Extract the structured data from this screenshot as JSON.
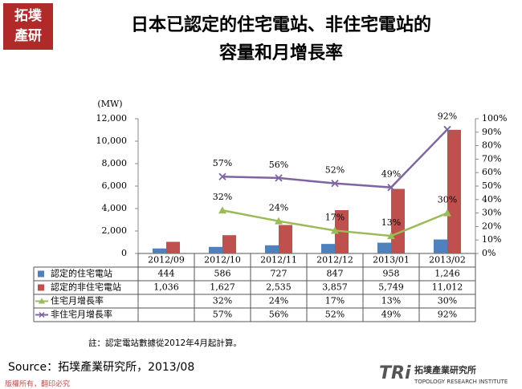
{
  "chart_data": {
    "type": "bar",
    "title": [
      "日本已認定的住宅電站、非住宅電站的",
      "容量和月增長率"
    ],
    "y_unit": "(MW)",
    "categories": [
      "2012/09",
      "2012/10",
      "2012/11",
      "2012/12",
      "2013/01",
      "2013/02"
    ],
    "series": [
      {
        "name": "認定的住宅電站",
        "type": "bar",
        "color": "#4f81bd",
        "values": [
          444,
          586,
          727,
          847,
          958,
          1246
        ],
        "value_labels": [
          "444",
          "586",
          "727",
          "847",
          "958",
          "1,246"
        ]
      },
      {
        "name": "認定的非住宅電站",
        "type": "bar",
        "color": "#c0504d",
        "values": [
          1036,
          1627,
          2535,
          3857,
          5749,
          11012
        ],
        "value_labels": [
          "1,036",
          "1,627",
          "2,535",
          "3,857",
          "5,749",
          "11,012"
        ]
      },
      {
        "name": "住宅月增長率",
        "type": "line",
        "marker": "triangle",
        "axis": "y2",
        "color": "#9bbb59",
        "values": [
          null,
          32,
          24,
          17,
          13,
          30
        ],
        "value_labels": [
          null,
          "32%",
          "24%",
          "17%",
          "13%",
          "30%"
        ]
      },
      {
        "name": "非住宅月增長率",
        "type": "line",
        "marker": "x",
        "axis": "y2",
        "color": "#8064a2",
        "values": [
          null,
          57,
          56,
          52,
          49,
          92
        ],
        "value_labels": [
          null,
          "57%",
          "56%",
          "52%",
          "49%",
          "92%"
        ]
      }
    ],
    "ylim": [
      0,
      12000
    ],
    "yticks": [
      0,
      {
        "value": 2000,
        "label": "2,000"
      },
      {
        "value": 4000,
        "label": "4,000"
      },
      {
        "value": 6000,
        "label": "6,000"
      },
      {
        "value": 8000,
        "label": "8,000"
      },
      {
        "value": 10000,
        "label": "10,000"
      },
      {
        "value": 12000,
        "label": "12,000"
      }
    ],
    "y2lim": [
      0,
      100
    ],
    "y2ticks": [
      {
        "value": 0,
        "label": "0%"
      },
      {
        "value": 10,
        "label": "10%"
      },
      {
        "value": 20,
        "label": "20%"
      },
      {
        "value": 30,
        "label": "30%"
      },
      {
        "value": 40,
        "label": "40%"
      },
      {
        "value": 50,
        "label": "50%"
      },
      {
        "value": 60,
        "label": "60%"
      },
      {
        "value": 70,
        "label": "70%"
      },
      {
        "value": 80,
        "label": "80%"
      },
      {
        "value": 90,
        "label": "90%"
      },
      {
        "value": 100,
        "label": "100%"
      }
    ],
    "note": "註：認定電站數據從2012年4月起計算。",
    "source": "Source：拓墣產業研究所，2013/08",
    "logo": [
      "拓墣",
      "產研"
    ],
    "footer": "版權所有，翻印必究",
    "brand": {
      "mark": "TRi",
      "name": "拓墣產業研究所",
      "english": "TOPOLOGY RESEARCH INSTITUTE"
    }
  }
}
